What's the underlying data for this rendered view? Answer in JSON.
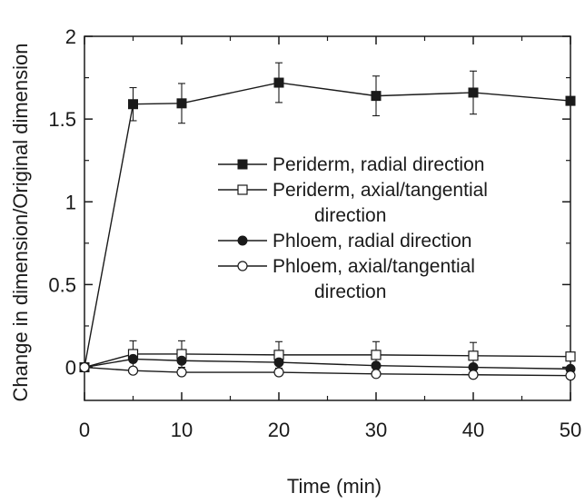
{
  "chart_data": {
    "type": "line",
    "title": "",
    "xlabel": "Time (min)",
    "ylabel": "Change in dimension/Original dimension",
    "xlim": [
      0,
      50
    ],
    "ylim": [
      -0.2,
      2.0
    ],
    "xticks": [
      0,
      10,
      20,
      30,
      40,
      50
    ],
    "xtick_labels": [
      "0",
      "10",
      "20",
      "30",
      "40",
      "50"
    ],
    "yticks": [
      0,
      0.5,
      1,
      1.5,
      2
    ],
    "ytick_labels": [
      "0",
      "0.5",
      "1",
      "1.5",
      "2"
    ],
    "grid": false,
    "legend_position": "center-right",
    "x": [
      0,
      5,
      10,
      20,
      30,
      40,
      50
    ],
    "series": [
      {
        "name": "Periderm, radial direction",
        "name_lines": [
          "Periderm, radial direction"
        ],
        "marker": "filled-square",
        "values": [
          0,
          1.59,
          1.595,
          1.72,
          1.64,
          1.66,
          1.61
        ],
        "errors": [
          0,
          0.1,
          0.12,
          0.12,
          0.12,
          0.13,
          0
        ]
      },
      {
        "name": "Periderm, axial/tangential direction",
        "name_lines": [
          "Periderm, axial/tangential",
          "direction"
        ],
        "marker": "open-square",
        "values": [
          0,
          0.08,
          0.08,
          0.075,
          0.075,
          0.07,
          0.065
        ],
        "errors": [
          0,
          0.08,
          0.08,
          0.08,
          0.08,
          0.08,
          0
        ]
      },
      {
        "name": "Phloem, radial direction",
        "name_lines": [
          "Phloem, radial direction"
        ],
        "marker": "filled-circle",
        "values": [
          0,
          0.05,
          0.04,
          0.03,
          0.01,
          0,
          -0.01
        ],
        "errors": [
          0,
          0,
          0,
          0,
          0,
          0,
          0
        ]
      },
      {
        "name": "Phloem, axial/tangential direction",
        "name_lines": [
          "Phloem, axial/tangential",
          "direction"
        ],
        "marker": "open-circle",
        "values": [
          0,
          -0.02,
          -0.03,
          -0.03,
          -0.04,
          -0.045,
          -0.05
        ],
        "errors": [
          0,
          0,
          0,
          0,
          0,
          0,
          0
        ]
      }
    ]
  }
}
